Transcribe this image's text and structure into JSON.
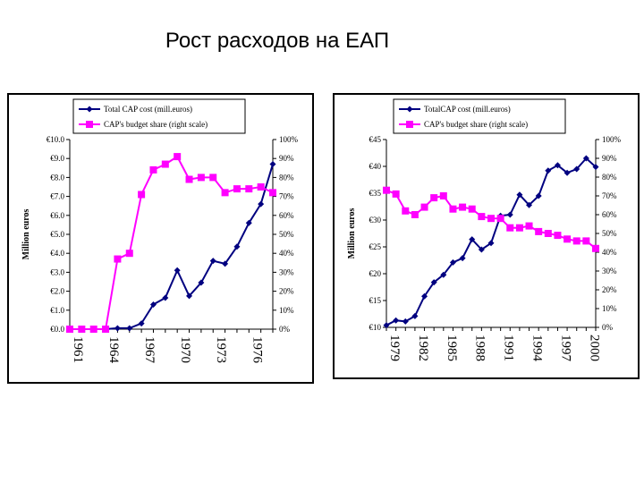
{
  "slide": {
    "title": "Рост расходов на ЕАП"
  },
  "chart_data": [
    {
      "type": "line",
      "title": "",
      "ylabel": "Million euros",
      "y2label": "",
      "legend": [
        "Total CAP cost (mill.euros)",
        "CAP's budget share (right scale)"
      ],
      "x": [
        1961,
        1962,
        1963,
        1964,
        1965,
        1966,
        1967,
        1968,
        1969,
        1970,
        1971,
        1972,
        1973,
        1974,
        1975,
        1976,
        1977,
        1978
      ],
      "x_tick_labels": [
        "1961",
        "1964",
        "1967",
        "1970",
        "1973",
        "1976"
      ],
      "x_tick_values": [
        1961,
        1964,
        1967,
        1970,
        1973,
        1976
      ],
      "ylim": [
        0,
        10
      ],
      "y_tick_labels": [
        "€0.0",
        "€1.0",
        "€2.0",
        "€3.0",
        "€4.0",
        "€5.0",
        "€6.0",
        "€7.0",
        "€8.0",
        "€9.0",
        "€10.0"
      ],
      "y2lim": [
        0,
        100
      ],
      "y2_tick_labels": [
        "0%",
        "10%",
        "20%",
        "30%",
        "40%",
        "50%",
        "60%",
        "70%",
        "80%",
        "90%",
        "100%"
      ],
      "series": [
        {
          "name": "Total CAP cost (mill.euros)",
          "axis": "left",
          "color": "#000080",
          "marker": "diamond",
          "x": [
            1961,
            1962,
            1963,
            1964,
            1965,
            1966,
            1967,
            1968,
            1969,
            1970,
            1971,
            1972,
            1973,
            1974,
            1975,
            1976,
            1977,
            1978
          ],
          "values": [
            0,
            0,
            0,
            0,
            0.05,
            0.05,
            0.3,
            1.3,
            1.65,
            3.1,
            1.75,
            2.45,
            3.6,
            3.45,
            4.35,
            5.6,
            6.6,
            8.7
          ]
        },
        {
          "name": "CAP's budget share (right scale)",
          "axis": "right",
          "color": "#ff00ff",
          "marker": "square",
          "x": [
            1961,
            1962,
            1963,
            1964,
            1965,
            1966,
            1967,
            1968,
            1969,
            1970,
            1971,
            1972,
            1973,
            1974,
            1975,
            1976,
            1977,
            1978
          ],
          "values": [
            0,
            0,
            0,
            0,
            37,
            40,
            71,
            84,
            87,
            91,
            79,
            80,
            80,
            72,
            74,
            74,
            75,
            72
          ]
        }
      ]
    },
    {
      "type": "line",
      "title": "",
      "ylabel": "Million euros",
      "legend": [
        "TotalCAP cost (mill.euros)",
        "CAP's budget share (right scale)"
      ],
      "x": [
        1979,
        1980,
        1981,
        1982,
        1983,
        1984,
        1985,
        1986,
        1987,
        1988,
        1989,
        1990,
        1991,
        1992,
        1993,
        1994,
        1995,
        1996,
        1997,
        1998,
        1999,
        2000,
        2001
      ],
      "x_tick_labels": [
        "1979",
        "1982",
        "1985",
        "1988",
        "1991",
        "1994",
        "1997",
        "2000"
      ],
      "x_tick_values": [
        1979,
        1982,
        1985,
        1988,
        1991,
        1994,
        1997,
        2000
      ],
      "ylim": [
        10,
        45
      ],
      "y_tick_labels": [
        "€10",
        "€15",
        "€20",
        "€25",
        "€30",
        "€35",
        "€40",
        "€45"
      ],
      "y2lim": [
        0,
        100
      ],
      "y2_tick_labels": [
        "0%",
        "10%",
        "20%",
        "30%",
        "40%",
        "50%",
        "60%",
        "70%",
        "80%",
        "90%",
        "100%"
      ],
      "series": [
        {
          "name": "TotalCAP cost (mill.euros)",
          "axis": "left",
          "color": "#000080",
          "marker": "diamond",
          "x": [
            1979,
            1980,
            1981,
            1982,
            1983,
            1984,
            1985,
            1986,
            1987,
            1988,
            1989,
            1990,
            1991,
            1992,
            1993,
            1994,
            1995,
            1996,
            1997,
            1998,
            1999,
            2000,
            2001
          ],
          "values": [
            10.4,
            11.3,
            11.1,
            12.1,
            15.8,
            18.4,
            19.8,
            22.1,
            22.9,
            26.4,
            24.5,
            25.7,
            30.8,
            31.0,
            34.7,
            32.8,
            34.5,
            39.2,
            40.2,
            38.8,
            39.5,
            41.5,
            39.9
          ]
        },
        {
          "name": "CAP's budget share (right scale)",
          "axis": "right",
          "color": "#ff00ff",
          "marker": "square",
          "x": [
            1979,
            1980,
            1981,
            1982,
            1983,
            1984,
            1985,
            1986,
            1987,
            1988,
            1989,
            1990,
            1991,
            1992,
            1993,
            1994,
            1995,
            1996,
            1997,
            1998,
            1999,
            2000,
            2001
          ],
          "values": [
            73,
            71,
            62,
            60,
            64,
            69,
            70,
            63,
            64,
            63,
            59,
            58,
            58,
            53,
            53,
            54,
            51,
            50,
            49,
            47,
            46,
            46,
            42
          ]
        }
      ]
    }
  ]
}
